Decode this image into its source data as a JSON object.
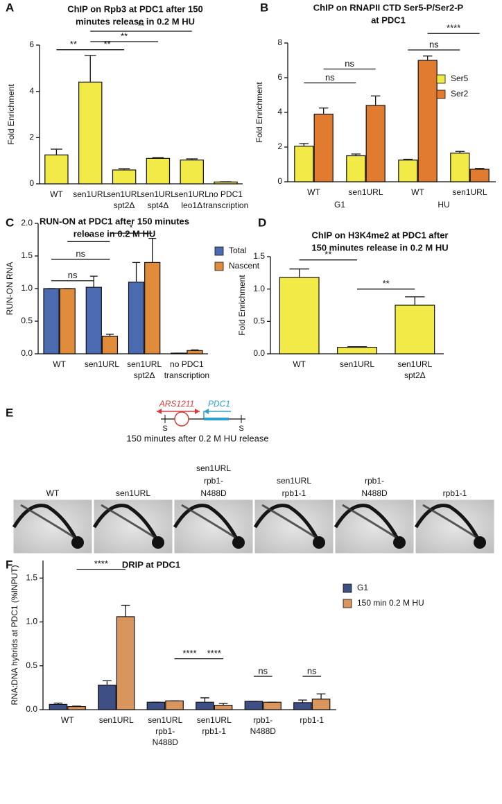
{
  "chart_data": [
    {
      "panel": "A",
      "type": "bar",
      "title": [
        "ChIP on Rpb3 at PDC1 after 150",
        "minutes release in 0.2 M HU"
      ],
      "ylabel": "Fold Enrichment",
      "categories": [
        [
          "WT"
        ],
        [
          "sen1URL"
        ],
        [
          "sen1URL",
          "spt2Δ"
        ],
        [
          "sen1URL",
          "spt4Δ"
        ],
        [
          "sen1URL",
          "leo1Δ"
        ],
        [
          "no PDC1",
          "transcription"
        ]
      ],
      "series": [
        {
          "color": "#f2ea47",
          "values": [
            1.25,
            4.4,
            0.6,
            1.1,
            1.03,
            0.08
          ],
          "errors": [
            0.25,
            1.15,
            0.05,
            0.03,
            0.05,
            0.01
          ]
        }
      ],
      "ylim": [
        0,
        6
      ],
      "yticks": [
        0,
        2,
        4,
        6
      ],
      "annotations": [
        {
          "text": "**",
          "between": [
            [
              0,
              0
            ],
            [
              1,
              0
            ]
          ]
        },
        {
          "text": "**",
          "between": [
            [
              1,
              0
            ],
            [
              2,
              0
            ]
          ]
        },
        {
          "text": "**",
          "between": [
            [
              1,
              0
            ],
            [
              3,
              0
            ]
          ]
        },
        {
          "text": "**",
          "between": [
            [
              1,
              0
            ],
            [
              4,
              0
            ]
          ]
        }
      ]
    },
    {
      "panel": "B",
      "type": "bar",
      "title": [
        "ChIP on RNAPII CTD Ser5-P/Ser2-P",
        "at PDC1"
      ],
      "ylabel": "Fold Enrichment",
      "categories": [
        [
          "WT"
        ],
        [
          "sen1URL"
        ],
        [
          "WT"
        ],
        [
          "sen1URL"
        ]
      ],
      "group_labels": [
        "G1",
        "HU"
      ],
      "series": [
        {
          "name": "Ser5",
          "color": "#f2ea47",
          "values": [
            2.05,
            1.5,
            1.25,
            1.65
          ],
          "errors": [
            0.15,
            0.1,
            0.05,
            0.1
          ]
        },
        {
          "name": "Ser2",
          "color": "#e07b30",
          "values": [
            3.9,
            4.4,
            7.0,
            0.72
          ],
          "errors": [
            0.35,
            0.55,
            0.25,
            0.05
          ]
        }
      ],
      "ylim": [
        0,
        8
      ],
      "yticks": [
        0,
        2,
        4,
        6,
        8
      ],
      "legend": "right",
      "annotations": [
        {
          "text": "ns",
          "between": [
            [
              0,
              0
            ],
            [
              1,
              0
            ]
          ]
        },
        {
          "text": "ns",
          "between": [
            [
              0,
              1
            ],
            [
              1,
              1
            ]
          ]
        },
        {
          "text": "ns",
          "between": [
            [
              2,
              0
            ],
            [
              3,
              0
            ]
          ]
        },
        {
          "text": "****",
          "between": [
            [
              2,
              1
            ],
            [
              3,
              1
            ]
          ]
        }
      ]
    },
    {
      "panel": "C",
      "type": "bar",
      "title": [
        "RUN-ON at PDC1 after 150 minutes",
        "release in 0.2 M HU"
      ],
      "ylabel": "RUN-ON RNA",
      "categories": [
        [
          "WT"
        ],
        [
          "sen1URL"
        ],
        [
          "sen1URL",
          "spt2Δ"
        ],
        [
          "no PDC1",
          "transcription"
        ]
      ],
      "series": [
        {
          "name": "Total",
          "color": "#4a6bb0",
          "values": [
            1.0,
            1.02,
            1.1,
            0.01
          ],
          "errors": [
            0,
            0.17,
            0.3,
            0
          ]
        },
        {
          "name": "Nascent",
          "color": "#e08c3a",
          "values": [
            1.0,
            0.27,
            1.4,
            0.05
          ],
          "errors": [
            0,
            0.03,
            0.37,
            0.01
          ]
        }
      ],
      "ylim": [
        0,
        2
      ],
      "yticks": [
        {
          "value": 0,
          "label": "0.0"
        },
        {
          "value": 0.5,
          "label": "0.5"
        },
        {
          "value": 1,
          "label": "1.0"
        },
        {
          "value": 1.5,
          "label": "1.5"
        },
        {
          "value": 2,
          "label": "2.0"
        }
      ],
      "legend": "upper right",
      "annotations": [
        {
          "text": "ns",
          "between": [
            [
              0,
              0
            ],
            [
              1,
              0
            ]
          ]
        },
        {
          "text": "ns",
          "between": [
            [
              0,
              0
            ],
            [
              1,
              1
            ]
          ]
        },
        {
          "text": "*",
          "between": [
            [
              0,
              1
            ],
            [
              1,
              1
            ]
          ]
        },
        {
          "text": "*",
          "between": [
            [
              1,
              1
            ],
            [
              2,
              1
            ]
          ]
        }
      ]
    },
    {
      "panel": "D",
      "type": "bar",
      "title": [
        "ChIP on H3K4me2 at PDC1 after",
        "150 minutes release in 0.2 M HU"
      ],
      "ylabel": "Fold Enrichment",
      "categories": [
        [
          "WT"
        ],
        [
          "sen1URL"
        ],
        [
          "sen1URL",
          "spt2Δ"
        ]
      ],
      "series": [
        {
          "color": "#f2ea47",
          "values": [
            1.18,
            0.1,
            0.75
          ],
          "errors": [
            0.13,
            0.01,
            0.13
          ]
        }
      ],
      "ylim": [
        0,
        1.5
      ],
      "yticks": [
        {
          "value": 0,
          "label": "0.0"
        },
        {
          "value": 0.5,
          "label": "0.5"
        },
        {
          "value": 1,
          "label": "1.0"
        },
        {
          "value": 1.5,
          "label": "1.5"
        }
      ],
      "annotations": [
        {
          "text": "**",
          "between": [
            [
              0,
              0
            ],
            [
              1,
              0
            ]
          ]
        },
        {
          "text": "**",
          "between": [
            [
              1,
              0
            ],
            [
              2,
              0
            ]
          ]
        }
      ]
    },
    {
      "panel": "F",
      "type": "bar",
      "title": [
        "DRIP  at PDC1"
      ],
      "ylabel": "RNA:DNA hybrids at PDC1 (%INPUT)",
      "categories": [
        [
          "WT"
        ],
        [
          "sen1URL"
        ],
        [
          "sen1URL",
          "rpb1-",
          "N488D"
        ],
        [
          "sen1URL",
          "rpb1-1"
        ],
        [
          "rpb1-",
          "N488D"
        ],
        [
          "rpb1-1"
        ]
      ],
      "series": [
        {
          "name": "G1",
          "color": "#3e4f86",
          "values": [
            0.06,
            0.28,
            0.085,
            0.085,
            0.095,
            0.08
          ],
          "errors": [
            0.015,
            0.05,
            0,
            0.05,
            0,
            0.03
          ]
        },
        {
          "name": "150 min 0.2 M HU",
          "color": "#d9955c",
          "values": [
            0.035,
            1.06,
            0.1,
            0.05,
            0.085,
            0.12
          ],
          "errors": [
            0.005,
            0.13,
            0,
            0.02,
            0,
            0.06
          ]
        }
      ],
      "ylim": [
        0,
        1.7
      ],
      "yticks": [
        {
          "value": 0,
          "label": "0.0"
        },
        {
          "value": 0.5,
          "label": "0.5"
        },
        {
          "value": 1,
          "label": "1.0"
        },
        {
          "value": 1.5,
          "label": "1.5"
        }
      ],
      "legend": "upper right",
      "annotations": [
        {
          "text": "****",
          "between": [
            [
              0,
              1
            ],
            [
              1,
              1
            ]
          ]
        },
        {
          "text": "****",
          "between": [
            [
              2,
              1
            ],
            [
              3,
              0
            ]
          ]
        },
        {
          "text": "****",
          "between": [
            [
              3,
              0
            ],
            [
              3,
              1
            ]
          ]
        },
        {
          "text": "ns",
          "between": [
            [
              4,
              0
            ],
            [
              4,
              1
            ]
          ]
        },
        {
          "text": "ns",
          "between": [
            [
              5,
              0
            ],
            [
              5,
              1
            ]
          ]
        }
      ]
    }
  ],
  "panel_e": {
    "panel": "E",
    "origin_label": "ARS1211",
    "gene_label": "PDC1",
    "site_labels": [
      "S",
      "S"
    ],
    "caption": "150 minutes after 0.2 M HU release",
    "lanes": [
      [
        "WT"
      ],
      [
        "sen1URL"
      ],
      [
        "sen1URL",
        "rpb1-",
        "N488D"
      ],
      [
        "sen1URL",
        "rpb1-1"
      ],
      [
        "rpb1-",
        "N488D"
      ],
      [
        "rpb1-1"
      ]
    ]
  }
}
